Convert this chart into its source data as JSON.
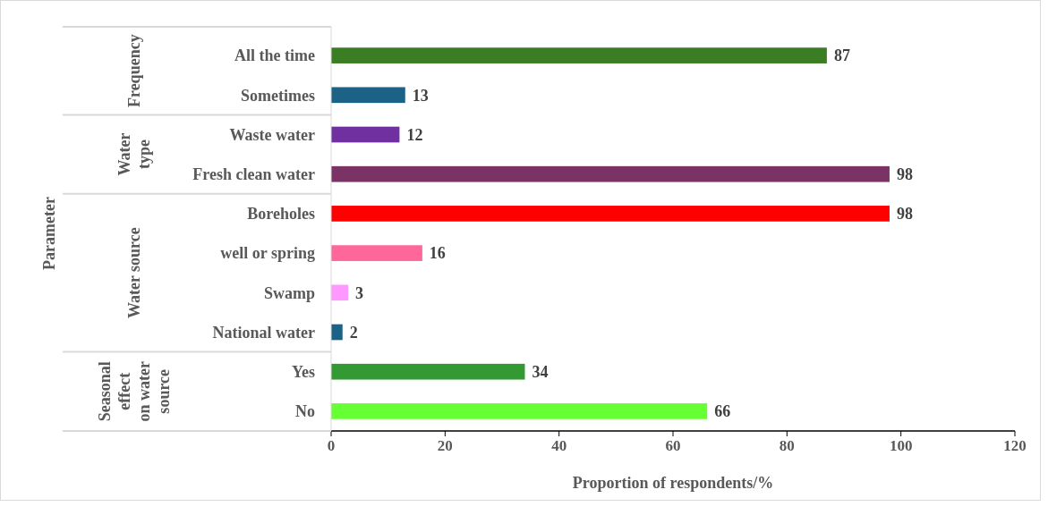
{
  "chart_data": {
    "type": "bar",
    "orientation": "horizontal",
    "categories": [
      "All the time",
      "Sometimes",
      "Waste water",
      "Fresh clean water",
      "Boreholes",
      "well or spring",
      "Swamp",
      "National water",
      "Yes",
      "No"
    ],
    "values": [
      87,
      13,
      12,
      98,
      98,
      16,
      3,
      2,
      34,
      66
    ],
    "colors": [
      "#3a7d23",
      "#1b6286",
      "#7030a0",
      "#7b3366",
      "#ff0000",
      "#ff6699",
      "#ff99ff",
      "#1b6286",
      "#339933",
      "#66ff33"
    ],
    "xlim": [
      0,
      120
    ],
    "xticks": [
      0,
      20,
      40,
      60,
      80,
      100,
      120
    ],
    "xlabel": "Proportion of respondents/%",
    "annotations": [
      "Parameter",
      "Frequency",
      "Water type",
      "Water source",
      "Seasonal effect on water source"
    ],
    "data_labels": true,
    "grid": false
  }
}
